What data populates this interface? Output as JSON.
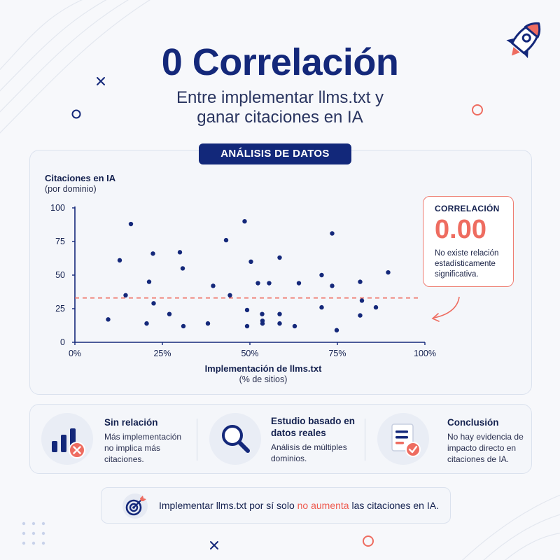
{
  "header": {
    "title": "0 Correlación",
    "subtitle_line1": "Entre implementar llms.txt y",
    "subtitle_line2": "ganar citaciones en IA",
    "icon": "rocket-icon"
  },
  "badge": {
    "label": "ANÁLISIS DE DATOS"
  },
  "chart_data": {
    "type": "scatter",
    "ylabel": "Citaciones en IA",
    "ylabel_sub": "(por dominio)",
    "xlabel": "Implementación de llms.txt",
    "xlabel_sub": "(% de sitios)",
    "xlim": [
      0,
      100
    ],
    "ylim": [
      0,
      100
    ],
    "x_ticks": [
      "0%",
      "25%",
      "50%",
      "75%",
      "100%"
    ],
    "x_tick_values": [
      0,
      25,
      50,
      75,
      100
    ],
    "y_ticks": [
      "0",
      "25",
      "50",
      "75",
      "100"
    ],
    "y_tick_values": [
      0,
      25,
      50,
      75,
      100
    ],
    "reference_line": {
      "y": 33,
      "style": "dashed",
      "color": "#ee6c60"
    },
    "point_color": "#14287a",
    "points": [
      {
        "x": 9.5,
        "y": 17
      },
      {
        "x": 12.8,
        "y": 61
      },
      {
        "x": 14.5,
        "y": 35
      },
      {
        "x": 16,
        "y": 88
      },
      {
        "x": 20.5,
        "y": 14
      },
      {
        "x": 21.2,
        "y": 45
      },
      {
        "x": 22.3,
        "y": 66
      },
      {
        "x": 22.5,
        "y": 29
      },
      {
        "x": 27,
        "y": 21
      },
      {
        "x": 30,
        "y": 67
      },
      {
        "x": 30.8,
        "y": 55
      },
      {
        "x": 31,
        "y": 12
      },
      {
        "x": 38,
        "y": 14
      },
      {
        "x": 39.5,
        "y": 42
      },
      {
        "x": 43.2,
        "y": 76
      },
      {
        "x": 44.3,
        "y": 35
      },
      {
        "x": 48.5,
        "y": 90
      },
      {
        "x": 49.2,
        "y": 24
      },
      {
        "x": 49.2,
        "y": 12
      },
      {
        "x": 50.3,
        "y": 60
      },
      {
        "x": 52.3,
        "y": 44
      },
      {
        "x": 53.5,
        "y": 21
      },
      {
        "x": 53.6,
        "y": 16
      },
      {
        "x": 53.6,
        "y": 14
      },
      {
        "x": 55.5,
        "y": 44
      },
      {
        "x": 58.5,
        "y": 63
      },
      {
        "x": 58.5,
        "y": 21
      },
      {
        "x": 58.5,
        "y": 14
      },
      {
        "x": 62.8,
        "y": 12
      },
      {
        "x": 64,
        "y": 44
      },
      {
        "x": 70.5,
        "y": 50
      },
      {
        "x": 70.5,
        "y": 26
      },
      {
        "x": 73.5,
        "y": 81
      },
      {
        "x": 73.5,
        "y": 42
      },
      {
        "x": 74.8,
        "y": 9
      },
      {
        "x": 81.5,
        "y": 45
      },
      {
        "x": 81.5,
        "y": 20
      },
      {
        "x": 82,
        "y": 31
      },
      {
        "x": 86,
        "y": 26
      },
      {
        "x": 89.5,
        "y": 52
      }
    ]
  },
  "correlation": {
    "label": "CORRELACIÓN",
    "value": "0.00",
    "text_line1": "No existe relación",
    "text_line2": "estadísticamente",
    "text_line3": "significativa."
  },
  "info": [
    {
      "title": "Sin relación",
      "desc_line1": "Más implementación",
      "desc_line2": "no implica más",
      "desc_line3": "citaciones.",
      "icon": "bar-chart-x-icon"
    },
    {
      "title_line1": "Estudio basado en",
      "title_line2": "datos reales",
      "desc_line1": "Análisis de múltiples",
      "desc_line2": "dominios.",
      "icon": "magnifier-icon"
    },
    {
      "title": "Conclusión",
      "desc_line1": "No hay evidencia de",
      "desc_line2": "impacto directo en",
      "desc_line3": "citaciones de IA.",
      "icon": "document-check-icon"
    }
  ],
  "bottom": {
    "text_before": "Implementar llms.txt por sí solo ",
    "text_highlight": "no aumenta",
    "text_after": " las citaciones en IA.",
    "icon": "target-icon"
  }
}
